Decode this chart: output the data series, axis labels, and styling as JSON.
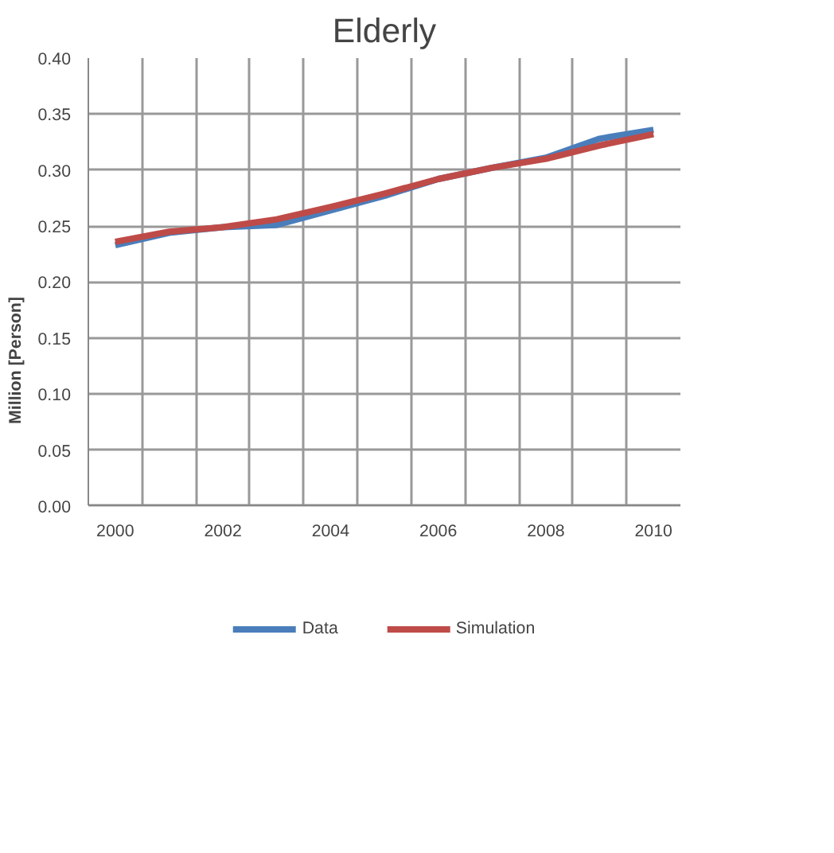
{
  "chart_data": {
    "type": "line",
    "title": "Elderly",
    "ylabel": "Million [Person]",
    "categories": [
      "2000",
      null,
      "2002",
      null,
      "2004",
      null,
      "2006",
      null,
      "2008",
      null,
      "2010"
    ],
    "series": [
      {
        "name": "Data",
        "color": "#4a7ebb",
        "values": [
          0.233,
          0.244,
          0.249,
          0.251,
          0.264,
          0.277,
          0.292,
          0.302,
          0.311,
          0.328,
          0.336
        ]
      },
      {
        "name": "Simulation",
        "color": "#be4b48",
        "values": [
          0.236,
          0.245,
          0.249,
          0.256,
          0.267,
          0.279,
          0.292,
          0.302,
          0.31,
          0.322,
          0.332
        ]
      }
    ],
    "ylim": [
      0,
      0.4
    ],
    "yticks": [
      {
        "value": 0,
        "label": "0.00"
      },
      {
        "value": 0.05,
        "label": "0.05"
      },
      {
        "value": 0.1,
        "label": "0.10"
      },
      {
        "value": 0.15,
        "label": "0.15"
      },
      {
        "value": 0.2,
        "label": "0.20"
      },
      {
        "value": 0.25,
        "label": "0.25"
      },
      {
        "value": 0.3,
        "label": "0.30"
      },
      {
        "value": 0.35,
        "label": "0.35"
      },
      {
        "value": 0.4,
        "label": "0.40"
      }
    ],
    "grid": true,
    "legend": "bottom",
    "marker": "none",
    "line_style": "solid"
  }
}
